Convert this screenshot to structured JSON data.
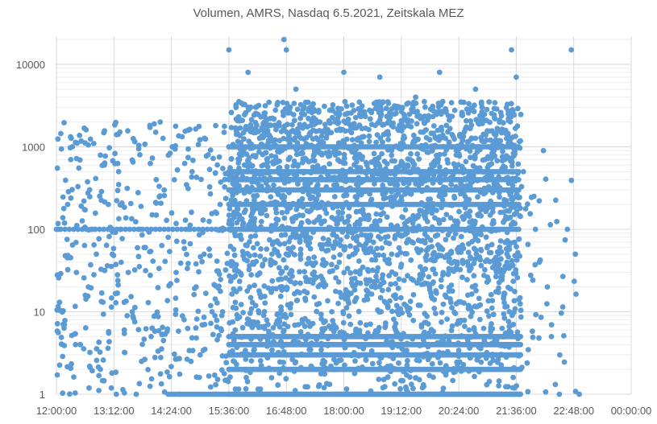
{
  "chart_data": {
    "type": "scatter",
    "title": "Volumen, AMRS, Nasdaq 6.5.2021, Zeitskala MEZ",
    "xlabel": "",
    "ylabel": "",
    "y_scale": "log",
    "ylim": [
      1,
      20000
    ],
    "y_ticks": [
      "1",
      "10",
      "100",
      "1000",
      "10000"
    ],
    "x_ticks": [
      "12:00:00",
      "13:12:00",
      "14:24:00",
      "15:36:00",
      "16:48:00",
      "18:00:00",
      "19:12:00",
      "20:24:00",
      "21:36:00",
      "22:48:00",
      "00:00:00"
    ],
    "xlim": [
      "12:00:00",
      "00:00:00"
    ],
    "grid": true,
    "legend": "none",
    "marker_color": "#5b9bd5",
    "series": [
      {
        "x": [
          "12:02",
          "12:10",
          "12:14",
          "12:18",
          "12:20",
          "12:25",
          "12:30",
          "12:40",
          "12:45",
          "12:50",
          "12:55",
          "13:00",
          "13:05",
          "13:10",
          "13:15",
          "13:18",
          "13:20",
          "13:25",
          "13:30",
          "13:35",
          "13:40",
          "13:45",
          "13:50",
          "14:00",
          "14:05",
          "14:10",
          "14:15",
          "14:20",
          "14:25",
          "14:30",
          "14:35",
          "14:40",
          "14:45",
          "14:50",
          "14:55",
          "15:00",
          "15:05",
          "15:10",
          "15:15",
          "15:20",
          "15:25",
          "15:30",
          "15:36",
          "15:45",
          "16:00",
          "16:15",
          "16:30",
          "16:45",
          "16:48",
          "17:00",
          "17:15",
          "17:30",
          "17:45",
          "18:00",
          "18:15",
          "18:30",
          "18:45",
          "19:00",
          "19:12",
          "19:30",
          "19:45",
          "20:00",
          "20:15",
          "20:24",
          "20:45",
          "21:00",
          "21:15",
          "21:30",
          "21:36",
          "21:45",
          "22:00",
          "22:05",
          "22:10",
          "22:15",
          "22:20",
          "22:30",
          "22:40",
          "22:45",
          "22:50",
          "22:55"
        ],
        "y": [
          100,
          7,
          200,
          700,
          1000,
          30,
          4,
          20,
          100,
          50,
          2,
          600,
          200,
          50,
          1,
          500,
          100,
          6,
          30,
          10,
          1,
          100,
          60,
          150,
          400,
          2000,
          300,
          80,
          1000,
          30,
          1,
          8,
          100,
          500,
          20,
          3,
          50,
          800,
          10,
          1,
          200,
          1500,
          15000,
          3000,
          8000,
          1000,
          50,
          20000,
          15000,
          5000,
          300,
          2000,
          10,
          8000,
          1000,
          200,
          7000,
          50,
          300,
          4000,
          100,
          8000,
          1000,
          60,
          5000,
          300,
          2000,
          15000,
          7000,
          500,
          100,
          40,
          900,
          20,
          5,
          1,
          100,
          15000,
          50,
          1
        ]
      }
    ]
  }
}
